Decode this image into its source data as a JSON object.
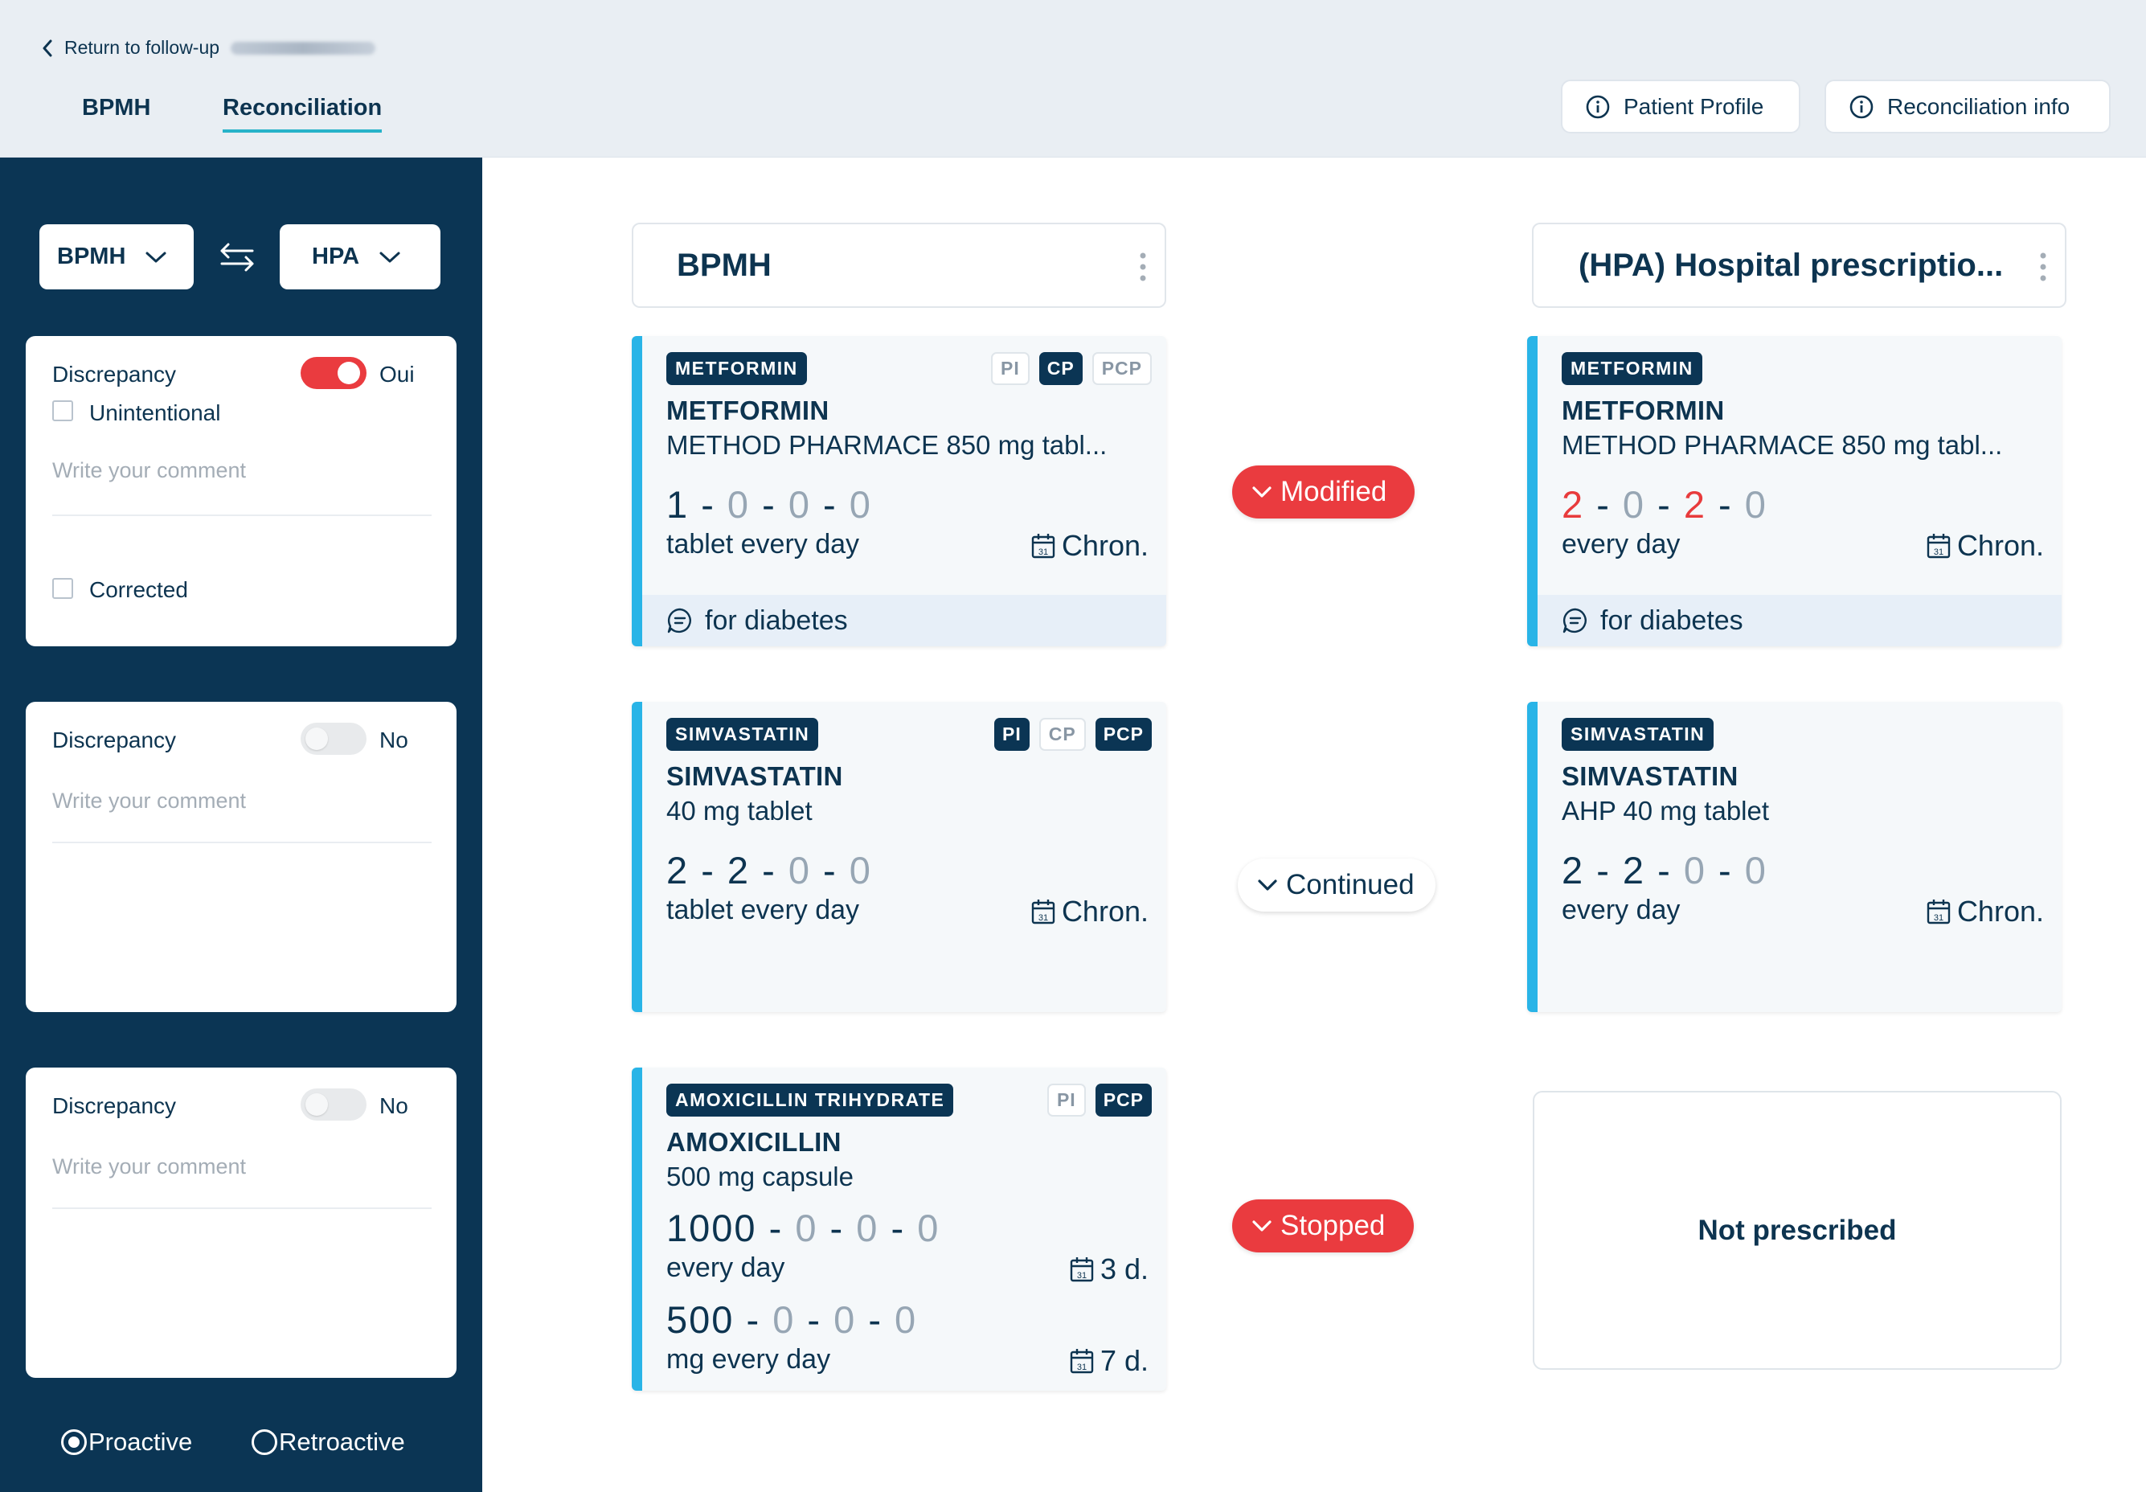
{
  "header": {
    "back_label": "Return to follow-up",
    "tabs": [
      {
        "label": "BPMH"
      },
      {
        "label": "Reconciliation"
      }
    ],
    "buttons": {
      "patient_profile": "Patient Profile",
      "reconciliation_info": "Reconciliation info"
    }
  },
  "sidebar": {
    "select_left": "BPMH",
    "select_right": "HPA",
    "cards": [
      {
        "title": "Discrepancy",
        "toggle_label": "Oui",
        "unintentional": "Unintentional",
        "comment_placeholder": "Write your comment",
        "corrected": "Corrected"
      },
      {
        "title": "Discrepancy",
        "toggle_label": "No",
        "comment_placeholder": "Write your comment"
      },
      {
        "title": "Discrepancy",
        "toggle_label": "No",
        "comment_placeholder": "Write your comment"
      }
    ],
    "radios": {
      "proactive": "Proactive",
      "retroactive": "Retroactive"
    }
  },
  "columns": {
    "left_title": "BPMH",
    "right_title": "(HPA) Hospital prescriptio..."
  },
  "left_meds": [
    {
      "badge": "METFORMIN",
      "tags": [
        "PI",
        "CP",
        "PCP"
      ],
      "name": "METFORMIN",
      "desc": "METHOD PHARMACE 850 mg tabl...",
      "dose": [
        "1",
        "0",
        "0",
        "0"
      ],
      "freq": "tablet every day",
      "duration": "Chron.",
      "note": "for diabetes"
    },
    {
      "badge": "SIMVASTATIN",
      "tags": [
        "PI",
        "CP",
        "PCP"
      ],
      "name": "SIMVASTATIN",
      "desc": "40 mg tablet",
      "dose": [
        "2",
        "2",
        "0",
        "0"
      ],
      "freq": "tablet every day",
      "duration": "Chron."
    },
    {
      "badge": "AMOXICILLIN TRIHYDRATE",
      "tags": [
        "PI",
        "PCP"
      ],
      "name": "AMOXICILLIN",
      "desc": "500 mg capsule",
      "dose": [
        "1000",
        "0",
        "0",
        "0"
      ],
      "freq": "every day",
      "duration": "3 d.",
      "dose2": [
        "500",
        "0",
        "0",
        "0"
      ],
      "freq2": "mg every day",
      "duration2": "7 d."
    }
  ],
  "right_meds": [
    {
      "badge": "METFORMIN",
      "name": "METFORMIN",
      "desc": "METHOD PHARMACE 850 mg tabl...",
      "dose": [
        "2",
        "0",
        "2",
        "0"
      ],
      "freq": "every day",
      "duration": "Chron.",
      "note": "for diabetes"
    },
    {
      "badge": "SIMVASTATIN",
      "name": "SIMVASTATIN",
      "desc": "AHP 40 mg tablet",
      "dose": [
        "2",
        "2",
        "0",
        "0"
      ],
      "freq": "every day",
      "duration": "Chron."
    }
  ],
  "not_prescribed": "Not prescribed",
  "statuses": {
    "modified": "Modified",
    "continued": "Continued",
    "stopped": "Stopped"
  },
  "colors": {
    "navy": "#0b3554",
    "accent_red": "#ea3b3f",
    "accent_blue": "#29b4e7",
    "tab_underline": "#27b3c9"
  }
}
